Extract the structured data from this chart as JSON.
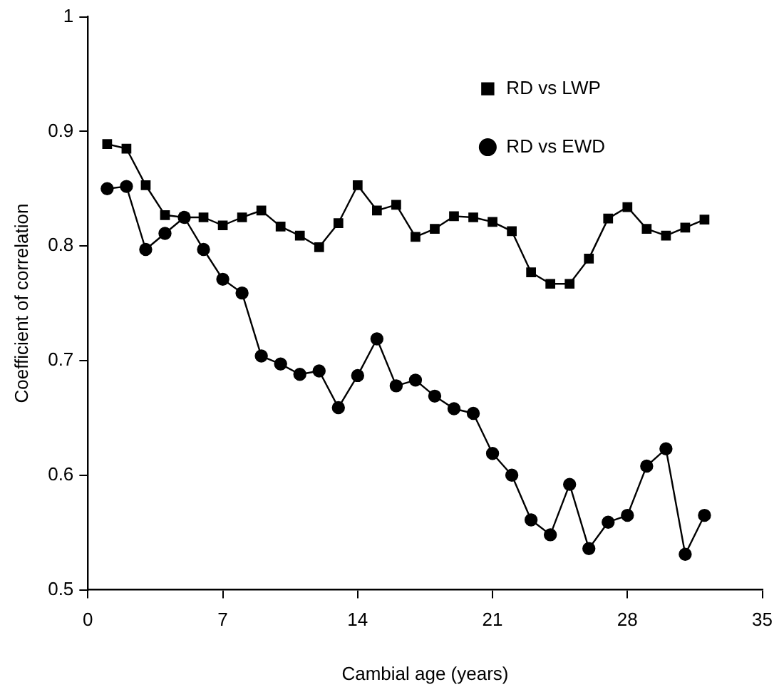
{
  "chart_data": {
    "type": "line",
    "xlabel": "Cambial age (years)",
    "ylabel": "Coefficient of correlation",
    "x": [
      1,
      2,
      3,
      4,
      5,
      6,
      7,
      8,
      9,
      10,
      11,
      12,
      13,
      14,
      15,
      16,
      17,
      18,
      19,
      20,
      21,
      22,
      23,
      24,
      25,
      26,
      27,
      28,
      29,
      30,
      31,
      32
    ],
    "series": [
      {
        "name": "RD vs LWP",
        "color": "#000000",
        "marker": "square",
        "values": [
          0.889,
          0.885,
          0.853,
          0.827,
          0.825,
          0.825,
          0.818,
          0.825,
          0.831,
          0.817,
          0.809,
          0.799,
          0.82,
          0.853,
          0.831,
          0.836,
          0.808,
          0.815,
          0.826,
          0.825,
          0.821,
          0.813,
          0.777,
          0.767,
          0.767,
          0.789,
          0.824,
          0.834,
          0.815,
          0.809,
          0.816,
          0.823
        ]
      },
      {
        "name": "RD vs EWD",
        "color": "#000000",
        "marker": "circle",
        "values": [
          0.85,
          0.852,
          0.797,
          0.811,
          0.825,
          0.797,
          0.771,
          0.759,
          0.704,
          0.697,
          0.688,
          0.691,
          0.659,
          0.687,
          0.719,
          0.678,
          0.683,
          0.669,
          0.658,
          0.654,
          0.619,
          0.6,
          0.561,
          0.548,
          0.592,
          0.536,
          0.559,
          0.565,
          0.608,
          0.623,
          0.531,
          0.565
        ]
      }
    ],
    "xlim": [
      0,
      35
    ],
    "xticks": [
      0,
      7,
      14,
      21,
      28,
      35
    ],
    "ylim": [
      0.5,
      1
    ],
    "yticks": [
      0.5,
      0.6,
      0.7,
      0.8,
      0.9,
      1
    ],
    "grid": false,
    "legend": "top right",
    "line_style": "solid"
  }
}
